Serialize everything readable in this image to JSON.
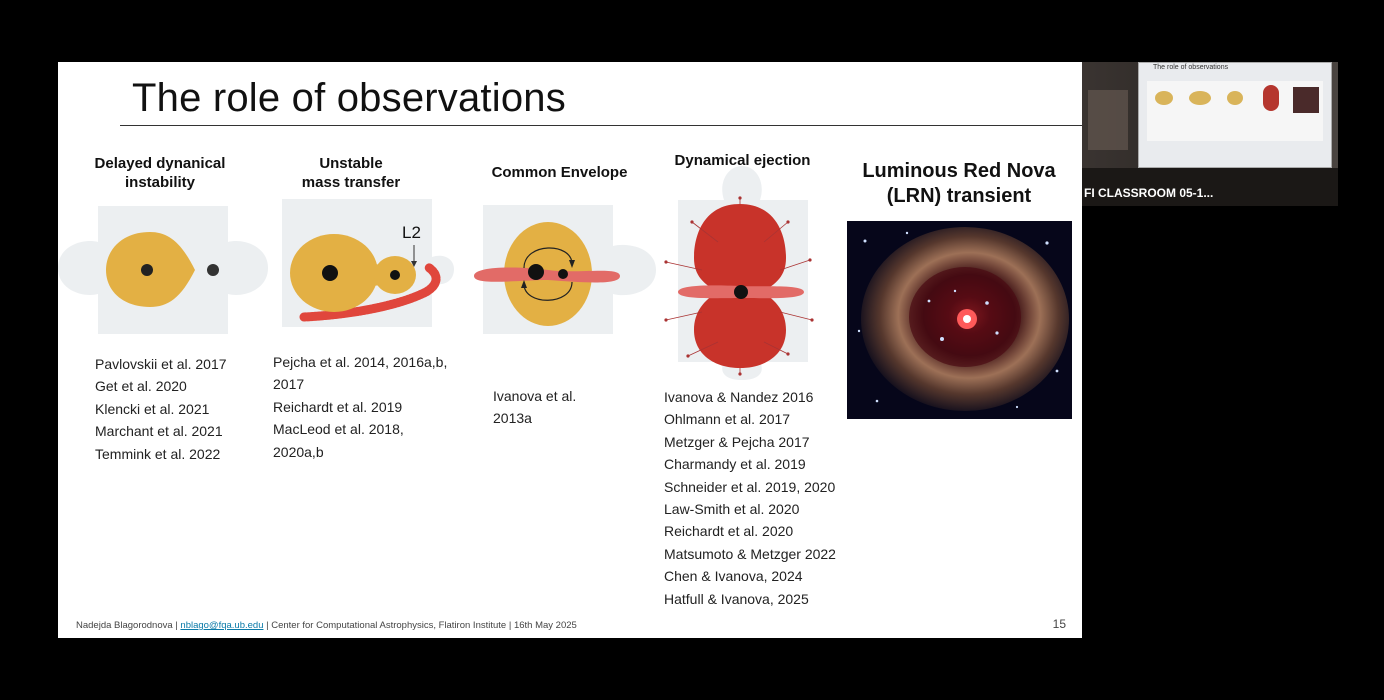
{
  "slide": {
    "title": "The role of observations",
    "columns": [
      {
        "heading": [
          "Delayed dynanical",
          "instability"
        ],
        "refs": [
          "Pavlovskii et al. 2017",
          "Get et al. 2020",
          "Klencki et al. 2021",
          "Marchant et al. 2021",
          "Temmink et al. 2022"
        ]
      },
      {
        "heading": [
          "Unstable",
          "mass transfer"
        ],
        "refs": [
          "Pejcha et al. 2014, 2016a,b,",
          "2017",
          "Reichardt et al. 2019",
          "MacLeod et al. 2018,",
          "2020a,b"
        ]
      },
      {
        "heading": [
          "Common Envelope"
        ],
        "refs": [
          "Ivanova et al.",
          "2013a"
        ]
      },
      {
        "heading": [
          "Dynamical ejection"
        ],
        "refs": [
          "Ivanova & Nandez 2016",
          "Ohlmann et al. 2017",
          "Metzger & Pejcha 2017",
          "Charmandy et al. 2019",
          "Schneider et al. 2019, 2020",
          "Law-Smith et al. 2020",
          "Reichardt et al. 2020",
          "Matsumoto & Metzger 2022",
          "Chen & Ivanova, 2024",
          "Hatfull & Ivanova, 2025"
        ]
      }
    ],
    "l2_label": "L2",
    "lrn_title": [
      "Luminous Red Nova",
      "(LRN) transient"
    ],
    "footer": {
      "author": "Nadejda Blagorodnova | ",
      "email": "nblago@fqa.ub.edu",
      "rest": " | Center for Computational Astrophysics, Flatiron Institute | 16th May 2025"
    },
    "page_number": "15"
  },
  "camera": {
    "label": "FI CLASSROOM 05-1...",
    "screen_title": "The role of observations"
  },
  "colors": {
    "star_yellow": "#e3b044",
    "ejecta_red": "#c8332a",
    "disk_pink": "#e26b67",
    "puzzle_gray": "#eceff1"
  }
}
